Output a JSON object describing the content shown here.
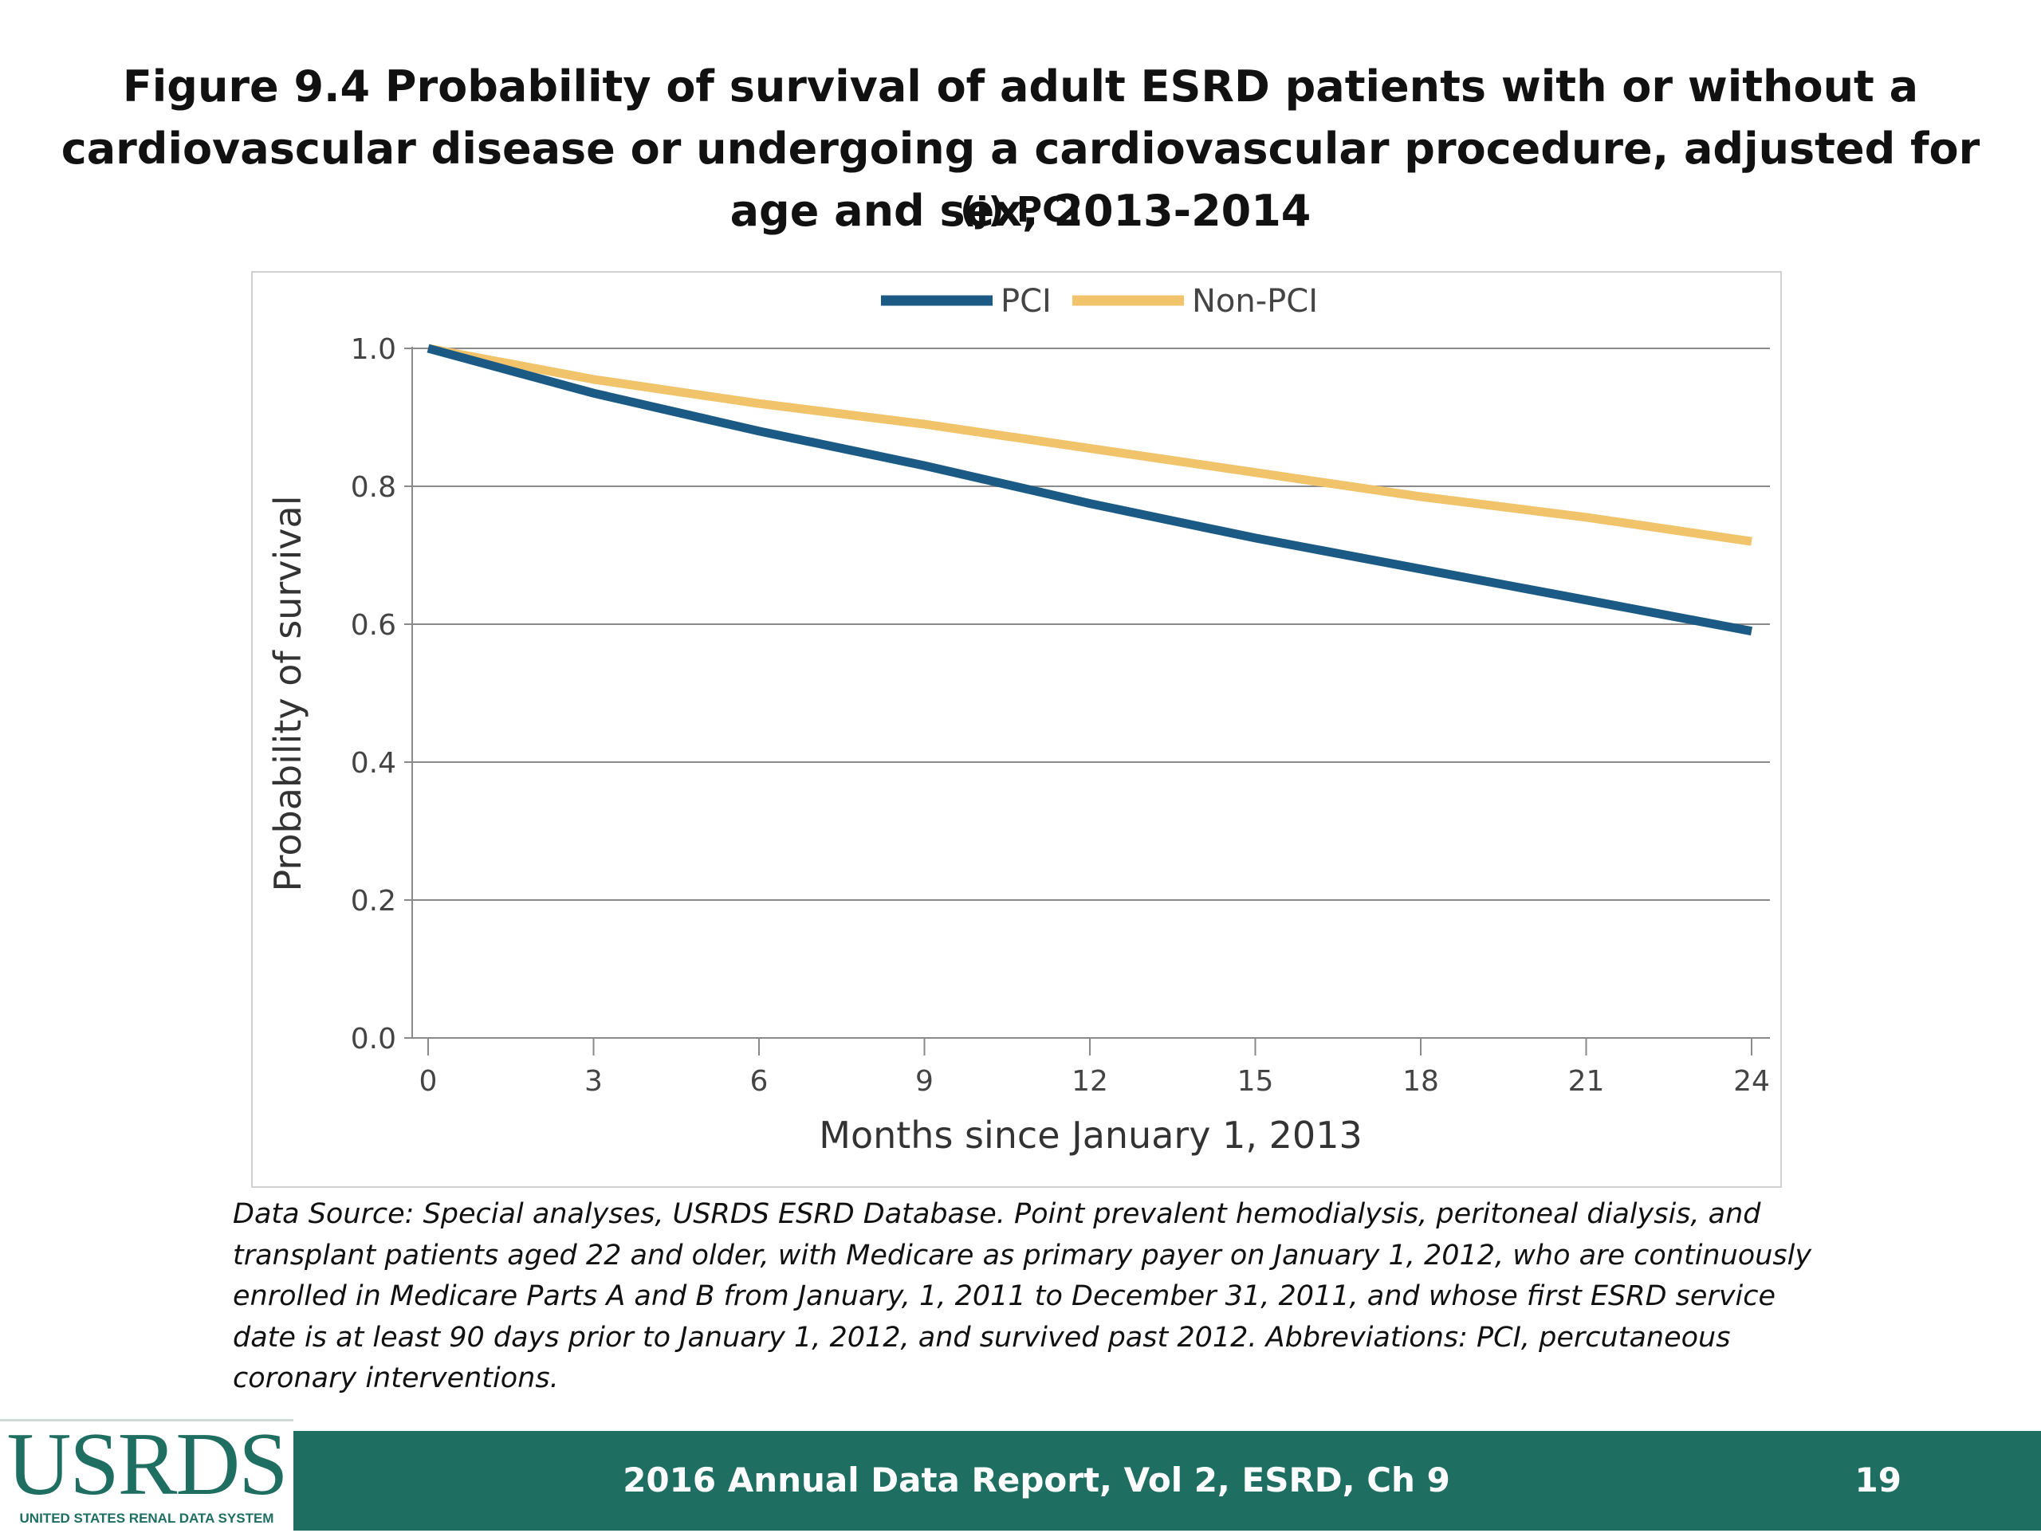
{
  "title": "Figure 9.4 Probability of survival of adult ESRD patients with or without a cardiovascular disease or undergoing a cardiovascular procedure, adjusted for age and sex, 2013-2014",
  "subtitle": "(j) PCI",
  "chart_data": {
    "type": "line",
    "xlabel": "Months since January 1, 2013",
    "ylabel": "Probability of survival",
    "x_ticks": [
      "0",
      "3",
      "6",
      "9",
      "12",
      "15",
      "18",
      "21",
      "24"
    ],
    "y_ticks": [
      "0.0",
      "0.2",
      "0.4",
      "0.6",
      "0.8",
      "1.0"
    ],
    "xlim": [
      0,
      24
    ],
    "ylim": [
      0,
      1
    ],
    "grid": "horizontal",
    "legend_position": "top-center",
    "x": [
      0,
      3,
      6,
      9,
      12,
      15,
      18,
      21,
      24
    ],
    "series": [
      {
        "name": "PCI",
        "color": "#1b5a85",
        "values": [
          1.0,
          0.935,
          0.88,
          0.83,
          0.775,
          0.725,
          0.68,
          0.635,
          0.59
        ]
      },
      {
        "name": "Non-PCI",
        "color": "#f1c46b",
        "values": [
          1.0,
          0.955,
          0.92,
          0.89,
          0.855,
          0.82,
          0.785,
          0.755,
          0.72
        ]
      }
    ]
  },
  "source_text": "Data Source: Special analyses, USRDS ESRD Database. Point prevalent hemodialysis, peritoneal dialysis, and transplant patients aged 22 and older, with Medicare as primary payer on January 1, 2012, who are continuously enrolled in Medicare Parts A and B from January, 1, 2011 to December 31, 2011, and whose first ESRD service date is at least 90 days prior to January 1, 2012, and survived past 2012. Abbreviations: PCI, percutaneous coronary interventions.",
  "footer": {
    "report": "2016 Annual Data Report, Vol 2, ESRD, Ch 9",
    "page": "19",
    "logo": "USRDS",
    "logo_sub": "UNITED STATES RENAL DATA SYSTEM"
  }
}
